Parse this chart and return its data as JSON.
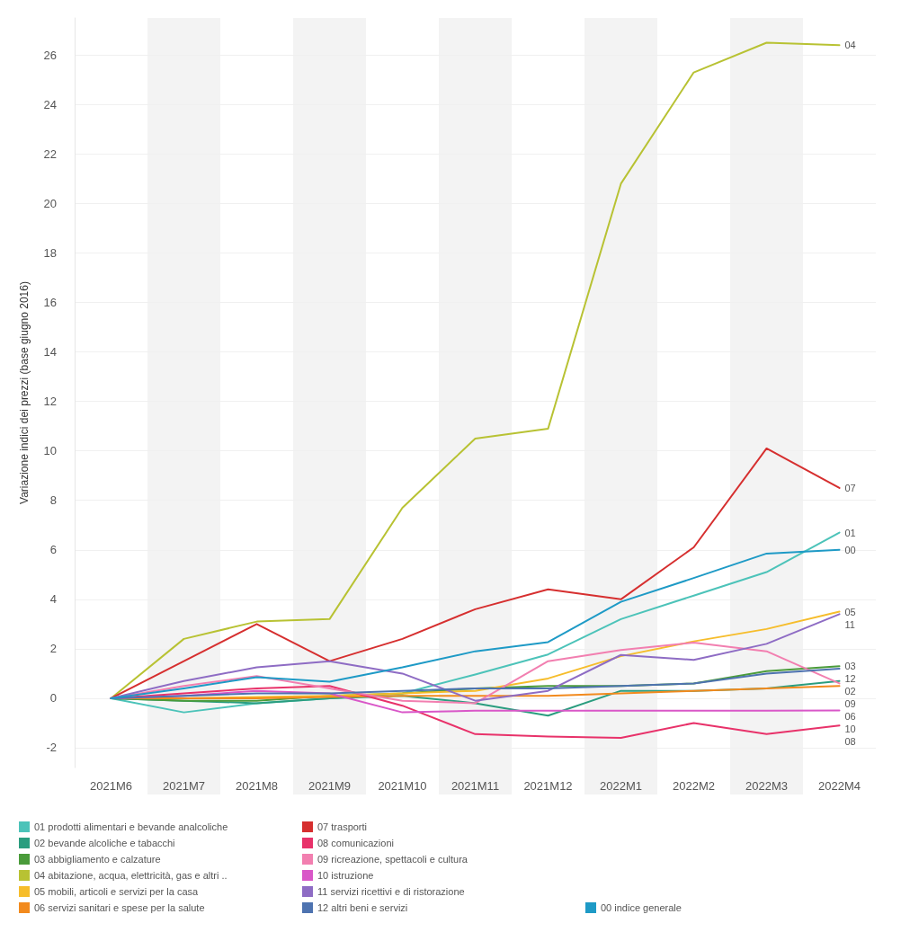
{
  "chart_data": {
    "type": "line",
    "ylabel": "Variazione indici dei prezzi (base giugno 2016)",
    "categories": [
      "2021M6",
      "2021M7",
      "2021M8",
      "2021M9",
      "2021M10",
      "2021M11",
      "2021M12",
      "2022M1",
      "2022M2",
      "2022M3",
      "2022M4"
    ],
    "ylim": [
      -2.8,
      27.5
    ],
    "yticks": [
      -2,
      0,
      2,
      4,
      6,
      8,
      10,
      12,
      14,
      16,
      18,
      20,
      22,
      24,
      26
    ],
    "grid": "y",
    "legend": "bottom",
    "marker": "none",
    "line_style": "solid",
    "series": [
      {
        "name": "01 prodotti alimentari e bevande analcoliche",
        "color": "#4cc3b9",
        "values": [
          0,
          -0.57,
          -0.2,
          0.0,
          0.2,
          0.96,
          1.77,
          3.2,
          4.15,
          5.1,
          6.7
        ]
      },
      {
        "name": "02 bevande alcoliche e tabacchi",
        "color": "#2a9d7f",
        "values": [
          0,
          -0.1,
          -0.2,
          0.0,
          0.1,
          -0.2,
          -0.7,
          0.3,
          0.3,
          0.4,
          0.7
        ]
      },
      {
        "name": "03 abbigliamento e calzature",
        "color": "#4a9b3a",
        "values": [
          0,
          -0.1,
          -0.1,
          0.1,
          0.2,
          0.4,
          0.5,
          0.5,
          0.6,
          1.1,
          1.3
        ]
      },
      {
        "name": "04 abitazione, acqua, elettricità, gas e altri ..",
        "color": "#b8c233",
        "values": [
          0,
          2.4,
          3.1,
          3.2,
          7.7,
          10.5,
          10.9,
          20.8,
          25.3,
          26.5,
          26.4
        ]
      },
      {
        "name": "05 mobili, articoli e servizi per la casa",
        "color": "#f6bd2b",
        "values": [
          0,
          0.0,
          0.05,
          0.1,
          0.2,
          0.3,
          0.8,
          1.7,
          2.3,
          2.8,
          3.5
        ]
      },
      {
        "name": "06 servizi sanitari e spese per la salute",
        "color": "#f28a1e",
        "values": [
          0,
          0.0,
          0.0,
          0.05,
          0.1,
          0.1,
          0.1,
          0.2,
          0.3,
          0.4,
          0.5
        ]
      },
      {
        "name": "07 trasporti",
        "color": "#d62f2f",
        "values": [
          0,
          1.5,
          3.0,
          1.5,
          2.4,
          3.6,
          4.4,
          4.0,
          6.1,
          10.1,
          8.5
        ]
      },
      {
        "name": "08 comunicazioni",
        "color": "#e8326a",
        "values": [
          0,
          0.2,
          0.4,
          0.5,
          -0.3,
          -1.45,
          -1.55,
          -1.6,
          -1.0,
          -1.45,
          -1.1
        ]
      },
      {
        "name": "09 ricreazione, spettacoli e cultura",
        "color": "#f27fb0",
        "values": [
          0,
          0.5,
          0.9,
          0.4,
          -0.1,
          -0.2,
          1.5,
          1.95,
          2.25,
          1.9,
          0.6
        ]
      },
      {
        "name": "10 istruzione",
        "color": "#d957c8",
        "values": [
          0,
          0.1,
          0.3,
          0.2,
          -0.57,
          -0.5,
          -0.5,
          -0.5,
          -0.5,
          -0.5,
          -0.49
        ]
      },
      {
        "name": "11 servizi ricettivi e di ristorazione",
        "color": "#8e6cc4",
        "values": [
          0,
          0.7,
          1.25,
          1.5,
          1.0,
          -0.1,
          0.3,
          1.75,
          1.55,
          2.2,
          3.4
        ]
      },
      {
        "name": "12 altri beni e servizi",
        "color": "#4e73b0",
        "values": [
          0,
          0.1,
          0.2,
          0.2,
          0.3,
          0.4,
          0.4,
          0.5,
          0.6,
          1.0,
          1.2
        ]
      },
      {
        "name": "00 indice generale",
        "color": "#1e9ac6",
        "values": [
          0,
          0.4,
          0.85,
          0.67,
          1.25,
          1.9,
          2.27,
          3.9,
          4.86,
          5.85,
          6.0
        ]
      }
    ],
    "bands": [
      {
        "axis": "x",
        "from": "2021M7",
        "to": "2021M7",
        "color": "#f3f3f3"
      },
      {
        "axis": "x",
        "from": "2021M9",
        "to": "2021M9",
        "color": "#f3f3f3"
      },
      {
        "axis": "x",
        "from": "2021M11",
        "to": "2021M11",
        "color": "#f3f3f3"
      },
      {
        "axis": "x",
        "from": "2022M1",
        "to": "2022M1",
        "color": "#f3f3f3"
      },
      {
        "axis": "x",
        "from": "2022M3",
        "to": "2022M3",
        "color": "#f3f3f3"
      }
    ],
    "annotations": [
      {
        "text": "04",
        "x": "2022M4",
        "y": 26.4
      },
      {
        "text": "07",
        "x": "2022M4",
        "y": 8.5
      },
      {
        "text": "01",
        "x": "2022M4",
        "y": 6.7
      },
      {
        "text": "00",
        "x": "2022M4",
        "y": 6.0
      },
      {
        "text": "05",
        "x": "2022M4",
        "y": 3.5
      },
      {
        "text": "11",
        "x": "2022M4",
        "y": 3.4
      },
      {
        "text": "12",
        "x": "2022M4",
        "y": 1.2
      },
      {
        "text": "03",
        "x": "2022M4",
        "y": 1.3
      },
      {
        "text": "09",
        "x": "2022M4",
        "y": 0.6
      },
      {
        "text": "02",
        "x": "2022M4",
        "y": 0.7
      },
      {
        "text": "06",
        "x": "2022M4",
        "y": 0.5
      },
      {
        "text": "10",
        "x": "2022M4",
        "y": -0.49
      },
      {
        "text": "08",
        "x": "2022M4",
        "y": -1.1
      }
    ]
  }
}
